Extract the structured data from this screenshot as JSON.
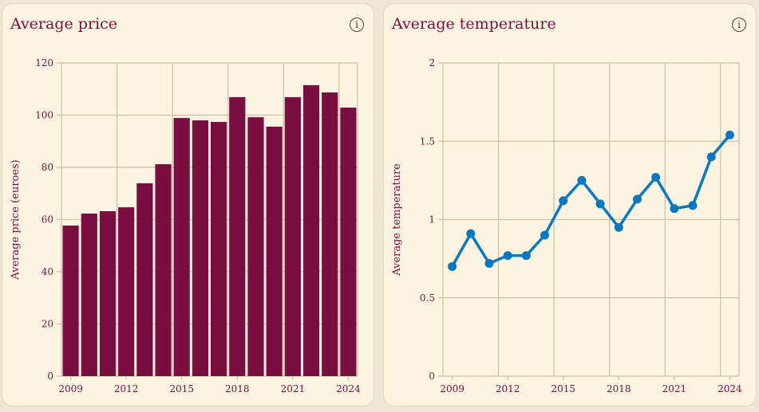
{
  "cards": [
    {
      "title": "Average price",
      "info_icon": "info-icon"
    },
    {
      "title": "Average temperature",
      "info_icon": "info-icon"
    }
  ],
  "colors": {
    "bar": "#7a0e40",
    "line": "#0a78c0",
    "grid": "#cbbfa6",
    "text": "#7a0e40",
    "card": "#fcf4e1"
  },
  "chart_data": [
    {
      "type": "bar",
      "title": "Average price",
      "xlabel": "",
      "ylabel": "Average price (euroes)",
      "categories": [
        2009,
        2010,
        2011,
        2012,
        2013,
        2014,
        2015,
        2016,
        2017,
        2018,
        2019,
        2020,
        2021,
        2022,
        2023,
        2024
      ],
      "values": [
        57.7,
        62.3,
        63.2,
        64.7,
        73.9,
        81.2,
        98.9,
        98.0,
        97.4,
        106.9,
        99.2,
        95.6,
        106.9,
        111.5,
        108.7,
        102.9
      ],
      "ylim": [
        0,
        120
      ],
      "yticks": [
        0,
        20,
        40,
        60,
        80,
        100,
        120
      ],
      "xticks": [
        2009,
        2012,
        2015,
        2018,
        2021,
        2024
      ],
      "grid": true
    },
    {
      "type": "line",
      "title": "Average temperature",
      "xlabel": "",
      "ylabel": "Average temperature",
      "x": [
        2009,
        2010,
        2011,
        2012,
        2013,
        2014,
        2015,
        2016,
        2017,
        2018,
        2019,
        2020,
        2021,
        2022,
        2023,
        2024
      ],
      "y": [
        0.7,
        0.91,
        0.72,
        0.77,
        0.77,
        0.9,
        1.12,
        1.25,
        1.1,
        0.95,
        1.13,
        1.27,
        1.07,
        1.09,
        1.4,
        1.54
      ],
      "ylim": [
        0,
        2
      ],
      "yticks": [
        "0",
        "0.5",
        "1",
        "1.5",
        "2"
      ],
      "xticks": [
        2009,
        2012,
        2015,
        2018,
        2021,
        2024
      ],
      "grid": true
    }
  ]
}
